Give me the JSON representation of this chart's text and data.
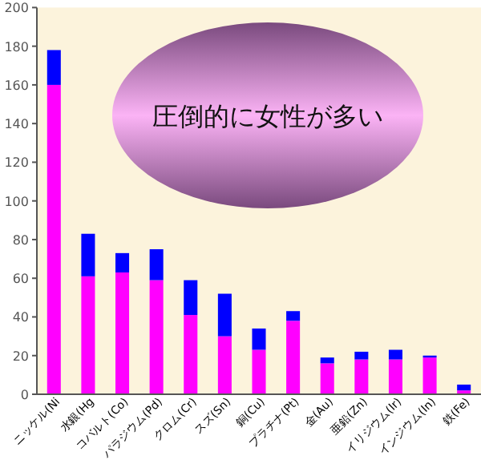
{
  "chart_data": {
    "type": "bar",
    "stacked": true,
    "categories": [
      "ニッケル(Ni",
      "水銀(Hg",
      "コバルト(Co)",
      "パラジウム(Pd)",
      "クロム(Cr)",
      "スズ(Sn)",
      "銅(Cu)",
      "プラチナ(Pt)",
      "金(Au)",
      "亜鉛(Zn)",
      "イリジウム(Ir)",
      "インジウム(In)",
      "鉄(Fe)"
    ],
    "series": [
      {
        "color": "#ff00ff",
        "values": [
          160,
          61,
          63,
          59,
          41,
          30,
          23,
          38,
          16,
          18,
          18,
          19,
          2
        ]
      },
      {
        "color": "#0000ff",
        "values": [
          18,
          22,
          10,
          16,
          18,
          22,
          11,
          5,
          3,
          4,
          5,
          1,
          3
        ]
      }
    ],
    "ylim": [
      0,
      200
    ],
    "yticks": [
      0,
      20,
      40,
      60,
      80,
      100,
      120,
      140,
      160,
      180,
      200
    ],
    "annotations": [
      "圧倒的に女性が多い"
    ]
  }
}
